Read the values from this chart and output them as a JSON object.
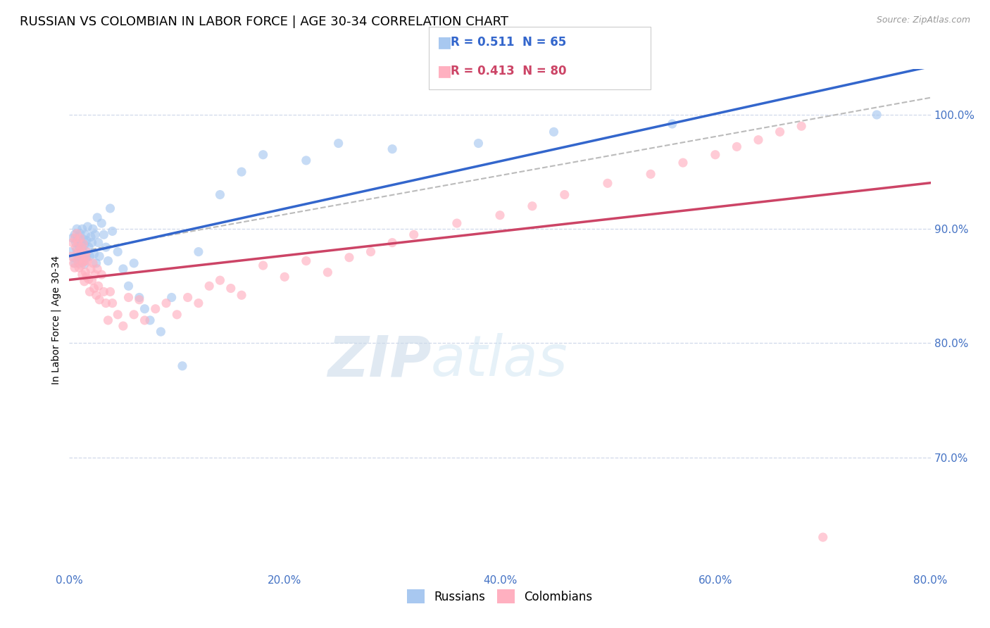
{
  "title": "RUSSIAN VS COLOMBIAN IN LABOR FORCE | AGE 30-34 CORRELATION CHART",
  "source": "Source: ZipAtlas.com",
  "xlabel_ticks": [
    "0.0%",
    "20.0%",
    "40.0%",
    "60.0%",
    "80.0%"
  ],
  "ylabel_right_ticks": [
    "100.0%",
    "90.0%",
    "80.0%",
    "70.0%"
  ],
  "xmin": 0.0,
  "xmax": 0.8,
  "ymin": 0.6,
  "ymax": 1.04,
  "watermark_zip": "ZIP",
  "watermark_atlas": "atlas",
  "russian_R": 0.511,
  "russian_N": 65,
  "colombian_R": 0.413,
  "colombian_N": 80,
  "russian_color": "#a8c8f0",
  "colombian_color": "#ffb0c0",
  "russian_line_color": "#3366cc",
  "colombian_line_color": "#cc4466",
  "dashed_line_color": "#bbbbbb",
  "scatter_alpha": 0.65,
  "scatter_size": 90,
  "ylabel": "In Labor Force | Age 30-34",
  "title_fontsize": 13,
  "tick_label_color": "#4472c4",
  "background_color": "#ffffff",
  "grid_color": "#d0d8ea",
  "ytick_positions": [
    0.7,
    0.8,
    0.9,
    1.0
  ],
  "russians_x": [
    0.001,
    0.003,
    0.004,
    0.005,
    0.005,
    0.006,
    0.007,
    0.007,
    0.008,
    0.008,
    0.009,
    0.009,
    0.01,
    0.01,
    0.011,
    0.011,
    0.012,
    0.012,
    0.013,
    0.013,
    0.014,
    0.014,
    0.015,
    0.015,
    0.016,
    0.016,
    0.017,
    0.018,
    0.019,
    0.02,
    0.021,
    0.022,
    0.023,
    0.024,
    0.025,
    0.026,
    0.027,
    0.028,
    0.03,
    0.032,
    0.034,
    0.036,
    0.038,
    0.04,
    0.045,
    0.05,
    0.055,
    0.06,
    0.065,
    0.07,
    0.075,
    0.085,
    0.095,
    0.105,
    0.12,
    0.14,
    0.16,
    0.18,
    0.22,
    0.25,
    0.3,
    0.38,
    0.45,
    0.56,
    0.75
  ],
  "russians_y": [
    0.88,
    0.892,
    0.875,
    0.895,
    0.87,
    0.888,
    0.9,
    0.882,
    0.893,
    0.876,
    0.885,
    0.87,
    0.896,
    0.878,
    0.888,
    0.872,
    0.9,
    0.883,
    0.875,
    0.891,
    0.886,
    0.869,
    0.895,
    0.878,
    0.89,
    0.875,
    0.902,
    0.884,
    0.876,
    0.893,
    0.888,
    0.9,
    0.878,
    0.895,
    0.87,
    0.91,
    0.888,
    0.876,
    0.905,
    0.895,
    0.884,
    0.872,
    0.918,
    0.898,
    0.88,
    0.865,
    0.85,
    0.87,
    0.84,
    0.83,
    0.82,
    0.81,
    0.84,
    0.78,
    0.88,
    0.93,
    0.95,
    0.965,
    0.96,
    0.975,
    0.97,
    0.975,
    0.985,
    0.992,
    1.0
  ],
  "colombians_x": [
    0.002,
    0.003,
    0.004,
    0.005,
    0.005,
    0.006,
    0.007,
    0.007,
    0.008,
    0.008,
    0.009,
    0.009,
    0.01,
    0.01,
    0.011,
    0.011,
    0.012,
    0.012,
    0.013,
    0.013,
    0.014,
    0.014,
    0.015,
    0.015,
    0.016,
    0.016,
    0.017,
    0.018,
    0.019,
    0.02,
    0.021,
    0.022,
    0.023,
    0.024,
    0.025,
    0.026,
    0.027,
    0.028,
    0.03,
    0.032,
    0.034,
    0.036,
    0.038,
    0.04,
    0.045,
    0.05,
    0.055,
    0.06,
    0.065,
    0.07,
    0.08,
    0.09,
    0.1,
    0.11,
    0.12,
    0.13,
    0.14,
    0.15,
    0.16,
    0.18,
    0.2,
    0.22,
    0.24,
    0.26,
    0.28,
    0.3,
    0.32,
    0.36,
    0.4,
    0.43,
    0.46,
    0.5,
    0.54,
    0.57,
    0.6,
    0.62,
    0.64,
    0.66,
    0.68,
    0.7
  ],
  "colombians_y": [
    0.876,
    0.888,
    0.87,
    0.892,
    0.866,
    0.884,
    0.896,
    0.878,
    0.889,
    0.872,
    0.881,
    0.866,
    0.892,
    0.874,
    0.884,
    0.868,
    0.86,
    0.879,
    0.871,
    0.887,
    0.872,
    0.854,
    0.876,
    0.862,
    0.88,
    0.858,
    0.872,
    0.856,
    0.845,
    0.865,
    0.855,
    0.87,
    0.848,
    0.86,
    0.842,
    0.865,
    0.85,
    0.838,
    0.86,
    0.845,
    0.835,
    0.82,
    0.845,
    0.835,
    0.825,
    0.815,
    0.84,
    0.825,
    0.838,
    0.82,
    0.83,
    0.835,
    0.825,
    0.84,
    0.835,
    0.85,
    0.855,
    0.848,
    0.842,
    0.868,
    0.858,
    0.872,
    0.862,
    0.875,
    0.88,
    0.888,
    0.895,
    0.905,
    0.912,
    0.92,
    0.93,
    0.94,
    0.948,
    0.958,
    0.965,
    0.972,
    0.978,
    0.985,
    0.99,
    0.63
  ]
}
